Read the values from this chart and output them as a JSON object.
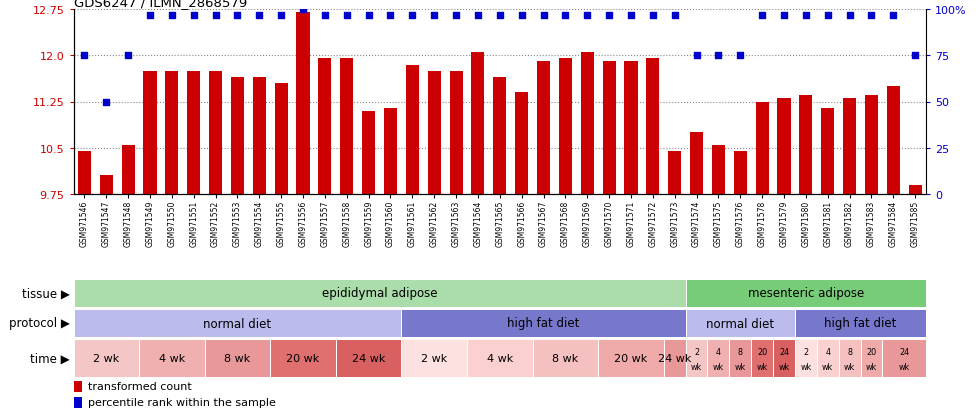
{
  "title": "GDS6247 / ILMN_2868579",
  "bar_color": "#cc0000",
  "dot_color": "#0000cc",
  "ylim": [
    9.75,
    12.75
  ],
  "yticks": [
    9.75,
    10.5,
    11.25,
    12.0,
    12.75
  ],
  "right_yticks": [
    0,
    25,
    50,
    75,
    100
  ],
  "right_yticklabels": [
    "0",
    "25",
    "50",
    "75",
    "100%"
  ],
  "samples": [
    "GSM971546",
    "GSM971547",
    "GSM971548",
    "GSM971549",
    "GSM971550",
    "GSM971551",
    "GSM971552",
    "GSM971553",
    "GSM971554",
    "GSM971555",
    "GSM971556",
    "GSM971557",
    "GSM971558",
    "GSM971559",
    "GSM971560",
    "GSM971561",
    "GSM971562",
    "GSM971563",
    "GSM971564",
    "GSM971565",
    "GSM971566",
    "GSM971567",
    "GSM971568",
    "GSM971569",
    "GSM971570",
    "GSM971571",
    "GSM971572",
    "GSM971573",
    "GSM971574",
    "GSM971575",
    "GSM971576",
    "GSM971578",
    "GSM971579",
    "GSM971580",
    "GSM971581",
    "GSM971582",
    "GSM971583",
    "GSM971584",
    "GSM971585"
  ],
  "bar_values": [
    10.45,
    10.05,
    10.55,
    11.75,
    11.75,
    11.75,
    11.75,
    11.65,
    11.65,
    11.55,
    12.7,
    11.95,
    11.95,
    11.1,
    11.15,
    11.85,
    11.75,
    11.75,
    12.05,
    11.65,
    11.4,
    11.9,
    11.95,
    12.05,
    11.9,
    11.9,
    11.95,
    10.45,
    10.75,
    10.55,
    10.45,
    11.25,
    11.3,
    11.35,
    11.15,
    11.3,
    11.35,
    11.5,
    9.9
  ],
  "dot_values_pct": [
    75,
    50,
    75,
    97,
    97,
    97,
    97,
    97,
    97,
    97,
    100,
    97,
    97,
    97,
    97,
    97,
    97,
    97,
    97,
    97,
    97,
    97,
    97,
    97,
    97,
    97,
    97,
    97,
    75,
    75,
    75,
    97,
    97,
    97,
    97,
    97,
    97,
    97,
    75
  ],
  "tissue_segments": [
    {
      "label": "epididymal adipose",
      "start": 0,
      "end": 28,
      "color": "#aaddaa"
    },
    {
      "label": "mesenteric adipose",
      "start": 28,
      "end": 39,
      "color": "#77cc77"
    }
  ],
  "protocol_segments": [
    {
      "label": "normal diet",
      "start": 0,
      "end": 15,
      "color": "#bbbbee"
    },
    {
      "label": "high fat diet",
      "start": 15,
      "end": 28,
      "color": "#7777cc"
    },
    {
      "label": "normal diet",
      "start": 28,
      "end": 33,
      "color": "#bbbbee"
    },
    {
      "label": "high fat diet",
      "start": 33,
      "end": 39,
      "color": "#7777cc"
    }
  ],
  "time_segments": [
    {
      "label": "2 wk",
      "start": 0,
      "end": 3,
      "color": "#f5c6c6",
      "small": false
    },
    {
      "label": "4 wk",
      "start": 3,
      "end": 6,
      "color": "#f0b0b0",
      "small": false
    },
    {
      "label": "8 wk",
      "start": 6,
      "end": 9,
      "color": "#e89898",
      "small": false
    },
    {
      "label": "20 wk",
      "start": 9,
      "end": 12,
      "color": "#e07070",
      "small": false
    },
    {
      "label": "24 wk",
      "start": 12,
      "end": 15,
      "color": "#d86060",
      "small": false
    },
    {
      "label": "2 wk",
      "start": 15,
      "end": 18,
      "color": "#fde0e0",
      "small": false
    },
    {
      "label": "4 wk",
      "start": 18,
      "end": 21,
      "color": "#fad0d0",
      "small": false
    },
    {
      "label": "8 wk",
      "start": 21,
      "end": 24,
      "color": "#f5c0c0",
      "small": false
    },
    {
      "label": "20 wk",
      "start": 24,
      "end": 27,
      "color": "#f0aaaa",
      "small": false
    },
    {
      "label": "24 wk",
      "start": 27,
      "end": 28,
      "color": "#e89898",
      "small": false
    },
    {
      "label": "2\nwk",
      "start": 28,
      "end": 29,
      "color": "#f5c6c6",
      "small": true
    },
    {
      "label": "4\nwk",
      "start": 29,
      "end": 30,
      "color": "#f0b0b0",
      "small": true
    },
    {
      "label": "8\nwk",
      "start": 30,
      "end": 31,
      "color": "#e89898",
      "small": true
    },
    {
      "label": "20\nwk",
      "start": 31,
      "end": 32,
      "color": "#e07070",
      "small": true
    },
    {
      "label": "24\nwk",
      "start": 32,
      "end": 33,
      "color": "#d86060",
      "small": true
    },
    {
      "label": "2\nwk",
      "start": 33,
      "end": 34,
      "color": "#fde0e0",
      "small": true
    },
    {
      "label": "4\nwk",
      "start": 34,
      "end": 35,
      "color": "#fad0d0",
      "small": true
    },
    {
      "label": "8\nwk",
      "start": 35,
      "end": 36,
      "color": "#f5c0c0",
      "small": true
    },
    {
      "label": "20\nwk",
      "start": 36,
      "end": 37,
      "color": "#f0aaaa",
      "small": true
    },
    {
      "label": "24\nwk",
      "start": 37,
      "end": 39,
      "color": "#e89898",
      "small": true
    }
  ],
  "bg_color": "#ffffff"
}
